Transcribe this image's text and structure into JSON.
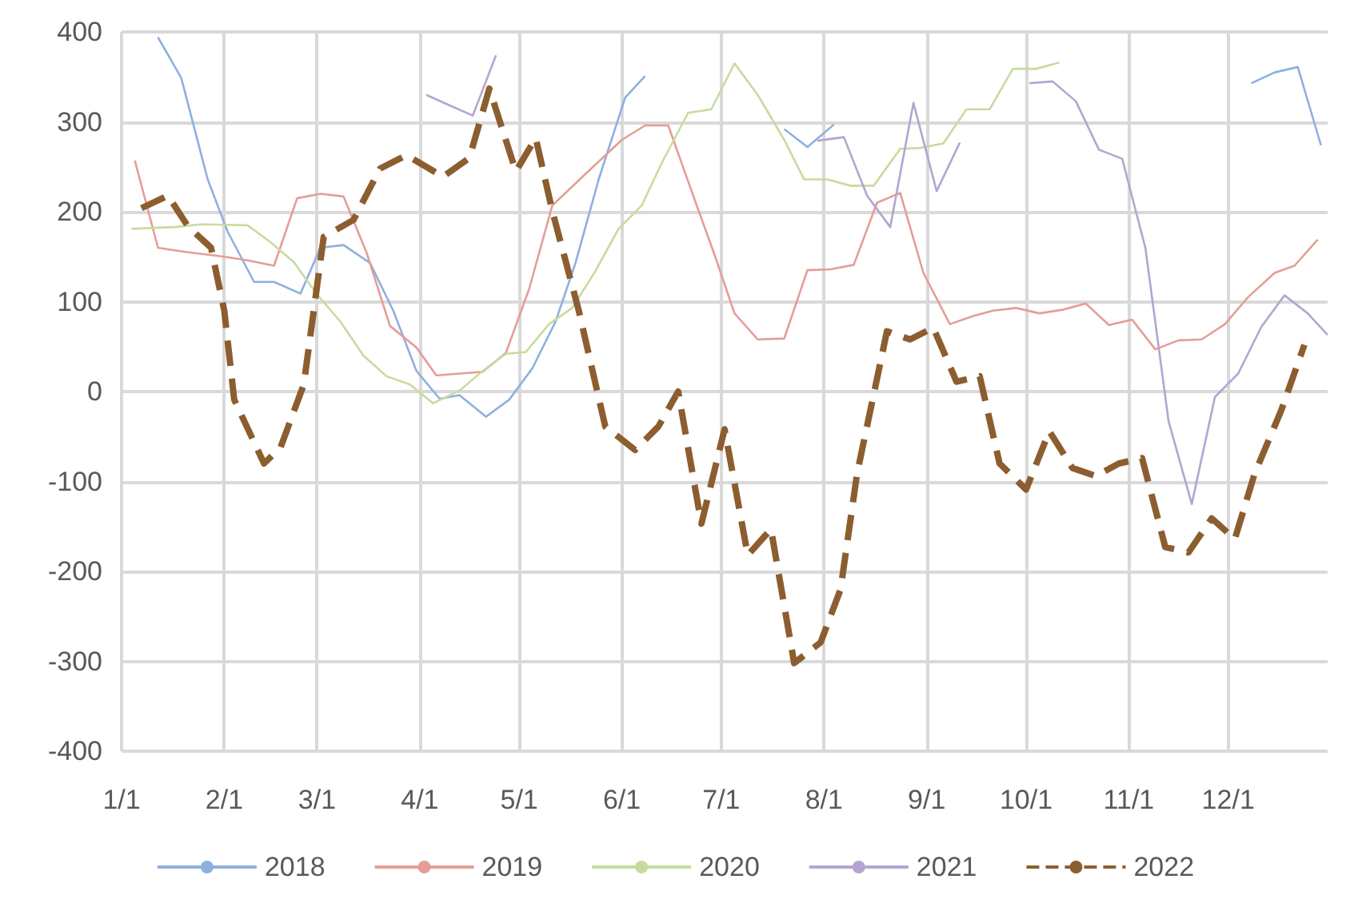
{
  "chart_data": {
    "type": "line",
    "xlim": [
      "--01-01",
      "--12-31"
    ],
    "xticks": [
      {
        "value": "--01-01",
        "label": "1/1"
      },
      {
        "value": "--02-01",
        "label": "2/1"
      },
      {
        "value": "--03-01",
        "label": "3/1"
      },
      {
        "value": "--04-01",
        "label": "4/1"
      },
      {
        "value": "--05-01",
        "label": "5/1"
      },
      {
        "value": "--06-01",
        "label": "6/1"
      },
      {
        "value": "--07-01",
        "label": "7/1"
      },
      {
        "value": "--08-01",
        "label": "8/1"
      },
      {
        "value": "--09-01",
        "label": "9/1"
      },
      {
        "value": "--10-01",
        "label": "10/1"
      },
      {
        "value": "--11-01",
        "label": "11/1"
      },
      {
        "value": "--12-01",
        "label": "12/1"
      }
    ],
    "ylim": [
      -400,
      400
    ],
    "yticks": [
      -400,
      -300,
      -200,
      -100,
      0,
      100,
      200,
      300,
      400
    ],
    "grid": true,
    "legend": "bottom",
    "marker": "none",
    "series": [
      {
        "name": "2018",
        "color": "#8eb0e0",
        "line_style": "solid",
        "x": [
          "--01-12",
          "--01-19",
          "--01-27",
          "--02-02",
          "--02-10",
          "--02-16",
          "--02-24",
          "--03-02",
          "--03-09",
          "--03-17",
          "--03-24",
          "--03-31",
          "--04-07",
          "--04-13",
          "--04-21",
          "--04-28",
          "--05-05",
          "--05-12",
          "--05-18",
          "--05-25",
          "--06-02",
          "--06-08",
          "--06-15",
          "--07-20",
          "--07-27",
          "--08-04",
          "--08-11",
          "--12-08",
          "--12-15",
          "--12-22",
          "--12-29"
        ],
        "values": [
          394,
          349,
          236,
          178,
          122,
          122,
          109,
          160,
          163,
          143,
          90,
          23,
          -8,
          -4,
          -28,
          -9,
          26,
          78,
          143,
          236,
          327,
          351,
          null,
          292,
          272,
          297,
          null,
          343,
          355,
          361,
          274
        ]
      },
      {
        "name": "2019",
        "color": "#e59d97",
        "line_style": "solid",
        "x": [
          "--01-05",
          "--01-12",
          "--01-19",
          "--02-01",
          "--02-08",
          "--02-16",
          "--02-23",
          "--03-02",
          "--03-09",
          "--03-16",
          "--03-23",
          "--03-31",
          "--04-06",
          "--04-20",
          "--04-27",
          "--05-04",
          "--05-11",
          "--05-21",
          "--06-01",
          "--06-08",
          "--06-15",
          "--06-23",
          "--06-29",
          "--07-05",
          "--07-12",
          "--07-20",
          "--07-27",
          "--08-03",
          "--08-10",
          "--08-17",
          "--08-24",
          "--08-31",
          "--09-08",
          "--09-15",
          "--09-21",
          "--09-28",
          "--10-05",
          "--10-12",
          "--10-19",
          "--10-26",
          "--11-02",
          "--11-09",
          "--11-16",
          "--11-23",
          "--11-30",
          "--12-07",
          "--12-15",
          "--12-21",
          "--12-28"
        ],
        "values": [
          257,
          160,
          156,
          150,
          146,
          140,
          215,
          220,
          217,
          154,
          73,
          49,
          18,
          22,
          43,
          114,
          207,
          242,
          280,
          296,
          296,
          213,
          152,
          87,
          58,
          59,
          135,
          136,
          141,
          210,
          221,
          132,
          75,
          84,
          90,
          93,
          87,
          91,
          98,
          74,
          80,
          47,
          57,
          58,
          75,
          105,
          132,
          140,
          169
        ]
      },
      {
        "name": "2020",
        "color": "#c6dc9e",
        "line_style": "solid",
        "x": [
          "--01-04",
          "--01-17",
          "--01-25",
          "--02-08",
          "--02-15",
          "--02-22",
          "--03-01",
          "--03-08",
          "--03-15",
          "--03-22",
          "--03-29",
          "--04-05",
          "--04-13",
          "--04-20",
          "--04-27",
          "--05-03",
          "--05-10",
          "--05-17",
          "--05-24",
          "--05-31",
          "--06-07",
          "--06-13",
          "--06-21",
          "--06-28",
          "--07-05",
          "--07-12",
          "--07-20",
          "--07-26",
          "--08-02",
          "--08-09",
          "--08-16",
          "--08-24",
          "--08-30",
          "--09-06",
          "--09-13",
          "--09-20",
          "--09-27",
          "--10-04",
          "--10-11"
        ],
        "values": [
          181,
          183,
          186,
          185,
          166,
          144,
          108,
          78,
          40,
          17,
          8,
          -13,
          1,
          23,
          42,
          44,
          75,
          93,
          134,
          181,
          207,
          254,
          310,
          314,
          365,
          330,
          280,
          236,
          236,
          229,
          229,
          270,
          271,
          276,
          314,
          314,
          359,
          359,
          366
        ]
      },
      {
        "name": "2021",
        "color": "#b3a5d2",
        "line_style": "solid",
        "x": [
          "--04-03",
          "--04-09",
          "--04-17",
          "--04-24",
          "--05-01",
          "--07-30",
          "--08-07",
          "--08-14",
          "--08-21",
          "--08-28",
          "--09-04",
          "--09-11",
          "--09-18",
          "--10-02",
          "--10-09",
          "--10-16",
          "--10-23",
          "--10-30",
          "--11-06",
          "--11-13",
          "--11-20",
          "--11-27",
          "--12-04",
          "--12-11",
          "--12-18",
          "--12-25",
          "--12-31"
        ],
        "values": [
          330,
          320,
          307,
          374,
          null,
          279,
          283,
          218,
          183,
          321,
          223,
          277,
          null,
          343,
          345,
          323,
          269,
          259,
          160,
          -33,
          -125,
          -6,
          20,
          72,
          107,
          87,
          63
        ]
      },
      {
        "name": "2022",
        "color": "#8c5e2f",
        "line_style": "dashed",
        "x": [
          "--01-07",
          "--01-15",
          "--01-21",
          "--01-28",
          "--02-01",
          "--02-04",
          "--02-13",
          "--02-18",
          "--02-25",
          "--03-03",
          "--03-12",
          "--03-20",
          "--03-28",
          "--04-08",
          "--04-16",
          "--04-22",
          "--04-30",
          "--05-06",
          "--05-11",
          "--05-19",
          "--05-27",
          "--06-05",
          "--06-12",
          "--06-18",
          "--06-25",
          "--07-02",
          "--07-09",
          "--07-16",
          "--07-23",
          "--07-31",
          "--08-06",
          "--08-11",
          "--08-20",
          "--08-27",
          "--09-03",
          "--09-10",
          "--09-17",
          "--09-23",
          "--10-01",
          "--10-08",
          "--10-15",
          "--10-22",
          "--10-29",
          "--11-05",
          "--11-12",
          "--11-19",
          "--11-26",
          "--12-03",
          "--12-09",
          "--12-17",
          "--12-24"
        ],
        "values": [
          204,
          218,
          184,
          160,
          90,
          -9,
          -80,
          -62,
          8,
          172,
          191,
          248,
          263,
          239,
          260,
          337,
          245,
          282,
          201,
          90,
          -39,
          -65,
          -39,
          0,
          -147,
          -42,
          -182,
          -153,
          -302,
          -279,
          -220,
          -91,
          67,
          58,
          71,
          11,
          17,
          -80,
          -109,
          -44,
          -85,
          -94,
          -80,
          -74,
          -173,
          -179,
          -141,
          -164,
          -91,
          -21,
          52
        ]
      }
    ]
  }
}
